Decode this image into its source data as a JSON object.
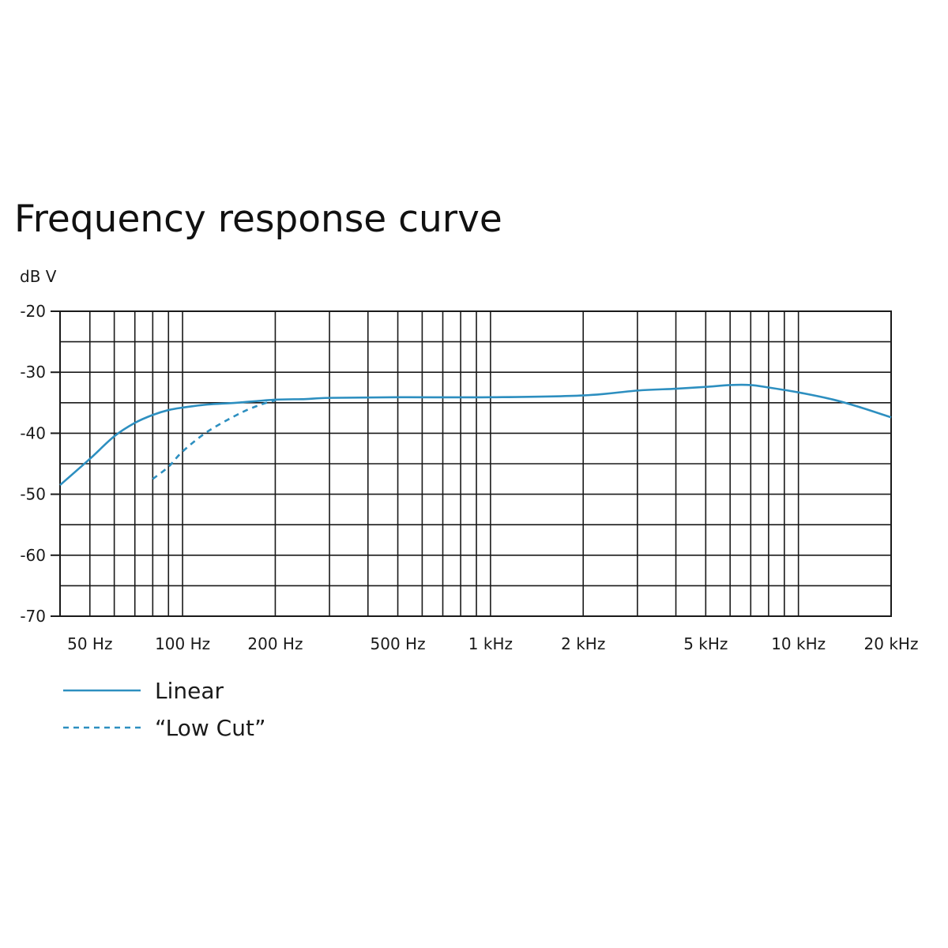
{
  "chart_data": {
    "type": "line",
    "title": "Frequency response curve",
    "ylabel": "dB V",
    "xlabel": "",
    "x_scale": "log",
    "xlim": [
      40,
      20000
    ],
    "ylim": [
      -70,
      -20
    ],
    "grid": true,
    "x_ticks": [
      {
        "value": 50,
        "label": "50 Hz"
      },
      {
        "value": 100,
        "label": "100 Hz"
      },
      {
        "value": 200,
        "label": "200 Hz"
      },
      {
        "value": 500,
        "label": "500 Hz"
      },
      {
        "value": 1000,
        "label": "1 kHz"
      },
      {
        "value": 2000,
        "label": "2 kHz"
      },
      {
        "value": 5000,
        "label": "5 kHz"
      },
      {
        "value": 10000,
        "label": "10 kHz"
      },
      {
        "value": 20000,
        "label": "20 kHz"
      }
    ],
    "y_ticks": [
      {
        "value": -20,
        "label": "-20"
      },
      {
        "value": -30,
        "label": "-30"
      },
      {
        "value": -40,
        "label": "-40"
      },
      {
        "value": -50,
        "label": "-50"
      },
      {
        "value": -60,
        "label": "-60"
      },
      {
        "value": -70,
        "label": "-70"
      }
    ],
    "series": [
      {
        "name": "Linear",
        "style": "solid",
        "color": "#2d8fc0",
        "points": [
          [
            40,
            -48.5
          ],
          [
            50,
            -44.2
          ],
          [
            60,
            -40.5
          ],
          [
            70,
            -38.3
          ],
          [
            80,
            -37.0
          ],
          [
            90,
            -36.2
          ],
          [
            100,
            -35.8
          ],
          [
            120,
            -35.3
          ],
          [
            150,
            -35.0
          ],
          [
            200,
            -34.5
          ],
          [
            250,
            -34.4
          ],
          [
            300,
            -34.2
          ],
          [
            500,
            -34.1
          ],
          [
            1000,
            -34.1
          ],
          [
            2000,
            -33.8
          ],
          [
            3000,
            -33.0
          ],
          [
            4000,
            -32.7
          ],
          [
            5000,
            -32.4
          ],
          [
            6000,
            -32.1
          ],
          [
            7000,
            -32.1
          ],
          [
            8000,
            -32.5
          ],
          [
            10000,
            -33.3
          ],
          [
            13000,
            -34.5
          ],
          [
            16000,
            -35.8
          ],
          [
            20000,
            -37.4
          ]
        ]
      },
      {
        "name": "“Low Cut”",
        "style": "dashed",
        "color": "#2d8fc0",
        "points": [
          [
            80,
            -47.5
          ],
          [
            90,
            -45.5
          ],
          [
            100,
            -43.0
          ],
          [
            120,
            -39.8
          ],
          [
            150,
            -37.0
          ],
          [
            175,
            -35.5
          ],
          [
            200,
            -34.6
          ]
        ]
      }
    ],
    "legend_position": "bottom-left"
  }
}
